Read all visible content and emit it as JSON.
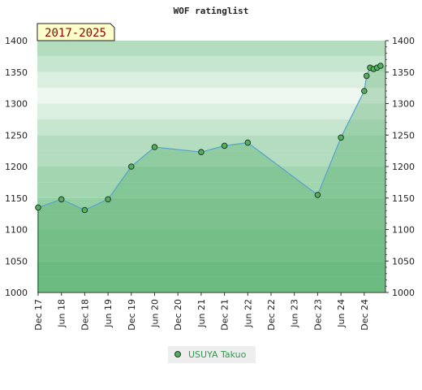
{
  "title": "WOF ratinglist",
  "period_label": "2017-2025",
  "colors": {
    "band_colors": [
      "#7cc58f",
      "#88cb9a",
      "#95d0a4",
      "#a2d6b0",
      "#b4ddbf",
      "#c7e6cf",
      "#dbefe0",
      "#eef7f0"
    ],
    "area_fill": "#4fa868",
    "line": "#5aa7c9",
    "marker_fill": "#52b05f",
    "marker_stroke": "#1f3a25",
    "badge_bg": "#ffffcc",
    "badge_text": "#8b0000",
    "legend_text": "#2e9a4a",
    "legend_bg": "#eeeeee"
  },
  "chart_data": {
    "type": "area",
    "title": "WOF ratinglist",
    "ylim": [
      1000,
      1400
    ],
    "y_ticks": [
      1000,
      1050,
      1100,
      1150,
      1200,
      1250,
      1300,
      1350,
      1400
    ],
    "y_tick_labels": [
      "1000",
      "1050",
      "1100",
      "1150",
      "1200",
      "1250",
      "1300",
      "1350",
      "1400"
    ],
    "y_axis_both_sides": true,
    "x_categories": [
      "Dec 17",
      "Jun 18",
      "Dec 18",
      "Jun 19",
      "Dec 19",
      "Jun 20",
      "Dec 20",
      "Jun 21",
      "Dec 21",
      "Jun 22",
      "Dec 22",
      "Jun 23",
      "Dec 23",
      "Jun 24",
      "Dec 24"
    ],
    "grid": false,
    "legend_position": "bottom",
    "series": [
      {
        "name": "USUYA Takuo",
        "points": [
          {
            "x": 0,
            "y": 1135
          },
          {
            "x": 1,
            "y": 1148
          },
          {
            "x": 2,
            "y": 1131
          },
          {
            "x": 3,
            "y": 1148
          },
          {
            "x": 4,
            "y": 1200
          },
          {
            "x": 5,
            "y": 1231
          },
          {
            "x": 7,
            "y": 1223
          },
          {
            "x": 8,
            "y": 1233
          },
          {
            "x": 9,
            "y": 1238
          },
          {
            "x": 12,
            "y": 1155
          },
          {
            "x": 13,
            "y": 1246
          },
          {
            "x": 14,
            "y": 1320
          },
          {
            "x": 14.1,
            "y": 1344
          },
          {
            "x": 14.25,
            "y": 1357
          },
          {
            "x": 14.4,
            "y": 1355
          },
          {
            "x": 14.55,
            "y": 1357
          },
          {
            "x": 14.7,
            "y": 1360
          }
        ]
      }
    ]
  }
}
